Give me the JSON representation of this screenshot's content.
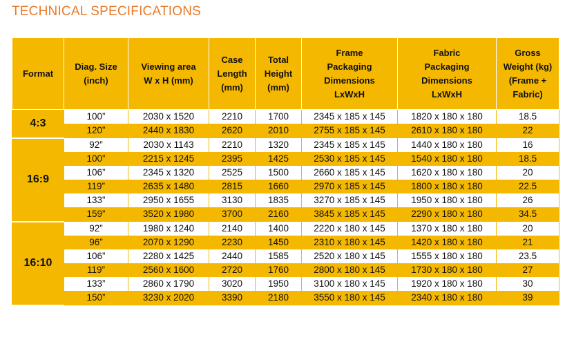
{
  "title": "TECHNICAL SPECIFICATIONS",
  "headers": [
    [
      "Format"
    ],
    [
      "Diag. Size",
      "(inch)"
    ],
    [
      "Viewing area",
      "W x  H (mm)"
    ],
    [
      "Case",
      "Length",
      "(mm)"
    ],
    [
      "Total",
      "Height",
      "(mm)"
    ],
    [
      "Frame",
      "Packaging",
      "Dimensions",
      "LxWxH"
    ],
    [
      "Fabric",
      "Packaging",
      "Dimensions",
      "LxWxH"
    ],
    [
      "Gross",
      "Weight (kg)",
      "(Frame +",
      "Fabric)"
    ]
  ],
  "groups": [
    {
      "format": "4:3",
      "rows": [
        [
          "100”",
          "2030 x 1520",
          "2210",
          "1700",
          "2345 x 185 x 145",
          "1820 x 180 x 180",
          "18.5"
        ],
        [
          "120”",
          "2440 x 1830",
          "2620",
          "2010",
          "2755 x 185 x 145",
          "2610 x 180 x 180",
          "22"
        ]
      ]
    },
    {
      "format": "16:9",
      "rows": [
        [
          "92”",
          "2030 x 1143",
          "2210",
          "1320",
          "2345 x 185 x 145",
          "1440 x 180 x 180",
          "16"
        ],
        [
          "100”",
          "2215 x 1245",
          "2395",
          "1425",
          "2530 x 185 x 145",
          "1540 x 180 x 180",
          "18.5"
        ],
        [
          "106”",
          "2345 x 1320",
          "2525",
          "1500",
          "2660 x 185 x 145",
          "1620 x 180 x 180",
          "20"
        ],
        [
          "119”",
          "2635 x 1480",
          "2815",
          "1660",
          "2970 x 185 x 145",
          "1800 x 180 x 180",
          "22.5"
        ],
        [
          "133”",
          "2950 x 1655",
          "3130",
          "1835",
          "3270 x 185 x 145",
          "1950 x 180 x 180",
          "26"
        ],
        [
          "159”",
          "3520 x 1980",
          "3700",
          "2160",
          "3845 x 185 x 145",
          "2290 x 180 x 180",
          "34.5"
        ]
      ]
    },
    {
      "format": "16:10",
      "rows": [
        [
          "92”",
          "1980 x 1240",
          "2140",
          "1400",
          "2220 x 180 x 145",
          "1370 x 180 x 180",
          "20"
        ],
        [
          "96”",
          "2070 x 1290",
          "2230",
          "1450",
          "2310 x 180 x 145",
          "1420 x 180 x 180",
          "21"
        ],
        [
          "106”",
          "2280 x 1425",
          "2440",
          "1585",
          "2520 x 180 x 145",
          "1555 x 180 x 180",
          "23.5"
        ],
        [
          "119”",
          "2560 x 1600",
          "2720",
          "1760",
          "2800 x 180 x 145",
          "1730 x 180 x 180",
          "27"
        ],
        [
          "133”",
          "2860 x 1790",
          "3020",
          "1950",
          "3100 x 180 x 145",
          "1920 x 180 x 180",
          "30"
        ],
        [
          "150”",
          "3230 x 2020",
          "3390",
          "2180",
          "3550 x 180 x 145",
          "2340 x 180 x 180",
          "39"
        ]
      ]
    }
  ],
  "colors": {
    "accent": "#f5b800",
    "title": "#e87a2a"
  }
}
